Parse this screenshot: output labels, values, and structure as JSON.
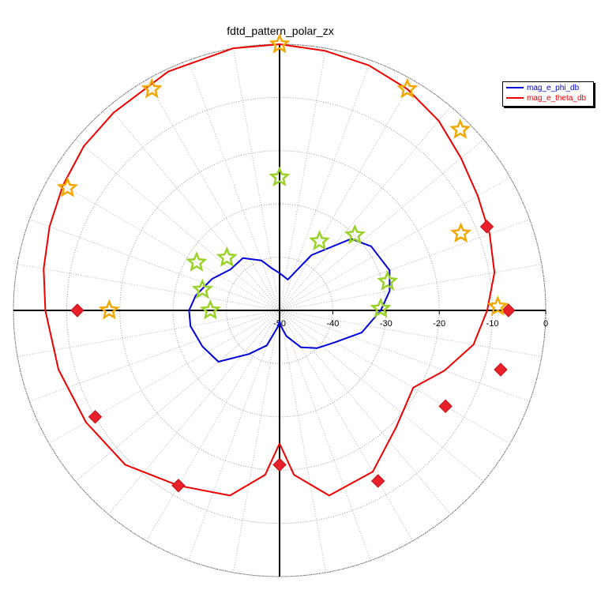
{
  "chart_data": {
    "type": "polar-line",
    "title": "fdtd_pattern_polar_zx",
    "radial_axis": {
      "ticks": [
        -50,
        -40,
        -30,
        -20,
        -10,
        0
      ],
      "tick_labels": [
        "-50",
        "-40",
        "-30",
        "-20",
        "-10",
        "0"
      ],
      "range": [
        -50,
        0
      ]
    },
    "angular_grid_step_deg": 10,
    "series": [
      {
        "name": "mag_e_phi_db",
        "color": "#0000dd",
        "points_deg_db": [
          [
            90,
            -43
          ],
          [
            75,
            -44
          ],
          [
            60,
            -38
          ],
          [
            45,
            -31
          ],
          [
            35,
            -29
          ],
          [
            20,
            -28
          ],
          [
            10,
            -29
          ],
          [
            0,
            -31
          ],
          [
            -15,
            -34
          ],
          [
            -30,
            -38
          ],
          [
            -45,
            -40
          ],
          [
            -60,
            -42
          ],
          [
            -75,
            -45
          ],
          [
            -85,
            -47
          ],
          [
            -90,
            -48
          ],
          [
            -95,
            -47
          ],
          [
            -110,
            -43
          ],
          [
            -125,
            -40
          ],
          [
            -140,
            -35
          ],
          [
            -155,
            -34
          ],
          [
            -170,
            -33
          ],
          [
            180,
            -33
          ],
          [
            170,
            -34
          ],
          [
            155,
            -36
          ],
          [
            140,
            -38
          ],
          [
            125,
            -38
          ],
          [
            110,
            -40
          ],
          [
            100,
            -42
          ],
          [
            90,
            -43
          ]
        ]
      },
      {
        "name": "mag_e_theta_db",
        "color": "#ee0000",
        "points_deg_db": [
          [
            90,
            0
          ],
          [
            80,
            -0.5
          ],
          [
            70,
            -1
          ],
          [
            60,
            -2
          ],
          [
            50,
            -3.5
          ],
          [
            40,
            -5.5
          ],
          [
            30,
            -7
          ],
          [
            20,
            -8
          ],
          [
            10,
            -9
          ],
          [
            0,
            -11
          ],
          [
            -10,
            -13
          ],
          [
            -20,
            -17
          ],
          [
            -30,
            -21
          ],
          [
            -45,
            -19
          ],
          [
            -60,
            -15
          ],
          [
            -75,
            -14
          ],
          [
            -85,
            -19
          ],
          [
            -90,
            -25
          ],
          [
            -95,
            -19
          ],
          [
            -105,
            -14
          ],
          [
            -120,
            -12
          ],
          [
            -135,
            -9
          ],
          [
            -150,
            -8
          ],
          [
            -165,
            -7
          ],
          [
            180,
            -6
          ],
          [
            170,
            -5
          ],
          [
            160,
            -4
          ],
          [
            150,
            -3
          ],
          [
            140,
            -2
          ],
          [
            130,
            -1.5
          ],
          [
            115,
            -0.5
          ],
          [
            100,
            0
          ],
          [
            90,
            0
          ]
        ]
      }
    ],
    "markers": {
      "red_diamonds": [
        [
          22,
          -8
        ],
        [
          0,
          -7
        ],
        [
          -15,
          -7
        ],
        [
          -30,
          -14
        ],
        [
          -60,
          -13
        ],
        [
          -90,
          -21
        ],
        [
          -120,
          -12
        ],
        [
          -150,
          -10
        ],
        [
          180,
          -12
        ]
      ],
      "gold_stars": [
        [
          90,
          0
        ],
        [
          60,
          -2
        ],
        [
          45,
          -2
        ],
        [
          23,
          -13
        ],
        [
          1,
          -9
        ],
        [
          120,
          -2
        ],
        [
          150,
          -4
        ],
        [
          180,
          -18
        ]
      ],
      "green_stars": [
        [
          90,
          -25
        ],
        [
          45,
          -30
        ],
        [
          60,
          -35
        ],
        [
          135,
          -36
        ],
        [
          150,
          -32
        ],
        [
          165,
          -35
        ],
        [
          15,
          -29
        ],
        [
          1,
          -31
        ],
        [
          180,
          -37
        ]
      ]
    }
  }
}
